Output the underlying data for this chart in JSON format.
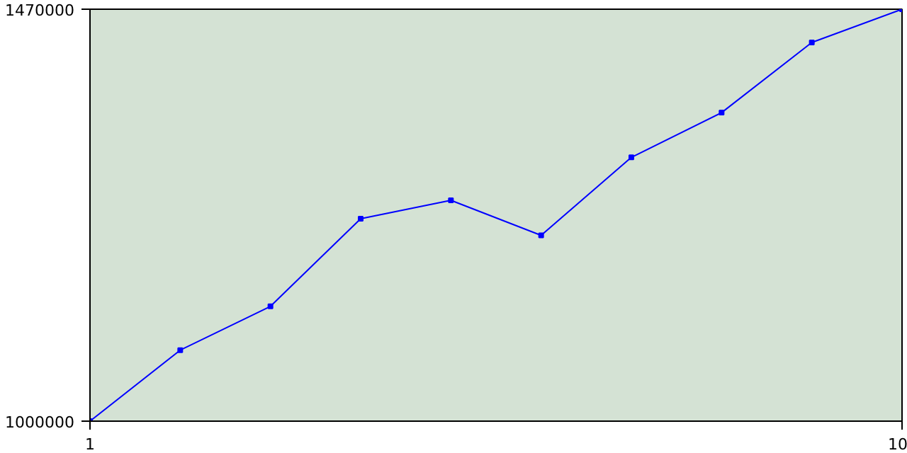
{
  "chart_data": {
    "type": "line",
    "x": [
      1,
      2,
      3,
      4,
      5,
      6,
      7,
      8,
      9,
      10
    ],
    "series": [
      {
        "color": "#0000ff",
        "values": [
          1000000,
          1081000,
          1131000,
          1231000,
          1252000,
          1212000,
          1301000,
          1352000,
          1432000,
          1470000
        ]
      }
    ],
    "xlim": [
      1,
      10
    ],
    "ylim": [
      1000000,
      1470000
    ],
    "xticks": [
      1,
      10
    ],
    "yticks": [
      1000000,
      1470000
    ],
    "marker": "square",
    "line_style": "solid"
  }
}
